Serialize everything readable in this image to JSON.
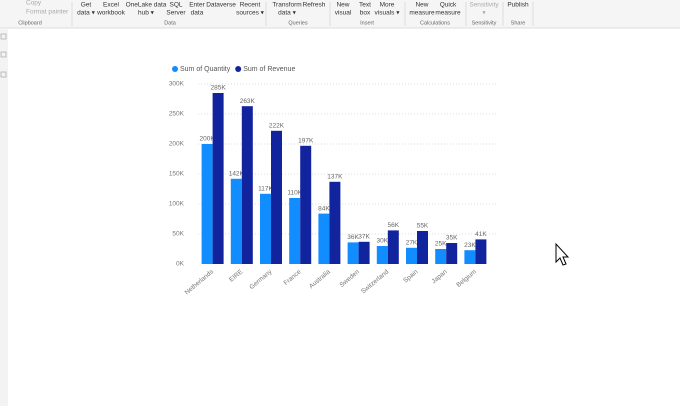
{
  "ribbon": {
    "clipboard": {
      "items": [
        "Copy",
        "Format painter"
      ],
      "label": "Clipboard"
    },
    "groups": [
      {
        "label": "Data",
        "buttons": [
          [
            "Get",
            "data ▾"
          ],
          [
            "Excel",
            "workbook"
          ],
          [
            "OneLake data",
            "hub ▾"
          ],
          [
            "SQL",
            "Server"
          ],
          [
            "Enter",
            "data"
          ],
          [
            "Dataverse"
          ],
          [
            "Recent",
            "sources ▾"
          ]
        ]
      },
      {
        "label": "Queries",
        "buttons": [
          [
            "Transform",
            "data ▾"
          ],
          [
            "Refresh"
          ]
        ]
      },
      {
        "label": "Insert",
        "buttons": [
          [
            "New",
            "visual"
          ],
          [
            "Text",
            "box"
          ],
          [
            "More",
            "visuals ▾"
          ]
        ]
      },
      {
        "label": "Calculations",
        "buttons": [
          [
            "New",
            "measure"
          ],
          [
            "Quick",
            "measure"
          ]
        ]
      },
      {
        "label": "Sensitivity",
        "buttons": [
          [
            "Sensitivity",
            "▾"
          ]
        ]
      },
      {
        "label": "Share",
        "buttons": [
          [
            "Publish"
          ]
        ]
      }
    ]
  },
  "chart_data": {
    "type": "bar",
    "categories": [
      "Netherlands",
      "EIRE",
      "Germany",
      "France",
      "Australia",
      "Sweden",
      "Switzerland",
      "Spain",
      "Japan",
      "Belgium"
    ],
    "series": [
      {
        "name": "Sum of Quantity",
        "color": "#118dff",
        "values": [
          200000,
          142000,
          117000,
          110000,
          84000,
          36000,
          30000,
          27000,
          25000,
          23000
        ],
        "value_labels": [
          "200K",
          "142K",
          "117K",
          "110K",
          "84K",
          "36K",
          "30K",
          "27K",
          "25K",
          "23K"
        ]
      },
      {
        "name": "Sum of Revenue",
        "color": "#12239e",
        "values": [
          285000,
          263000,
          222000,
          197000,
          137000,
          37000,
          56000,
          55000,
          35000,
          41000
        ],
        "value_labels": [
          "285K",
          "263K",
          "222K",
          "197K",
          "137K",
          "37K",
          "56K",
          "55K",
          "35K",
          "41K"
        ]
      }
    ],
    "ylim": [
      0,
      300000
    ],
    "yticks": [
      {
        "value": 0,
        "label": "0K"
      },
      {
        "value": 50000,
        "label": "50K"
      },
      {
        "value": 100000,
        "label": "100K"
      },
      {
        "value": 150000,
        "label": "150K"
      },
      {
        "value": 200000,
        "label": "200K"
      },
      {
        "value": 250000,
        "label": "250K"
      },
      {
        "value": 300000,
        "label": "300K"
      }
    ],
    "grid": true,
    "legend": "top-left"
  }
}
